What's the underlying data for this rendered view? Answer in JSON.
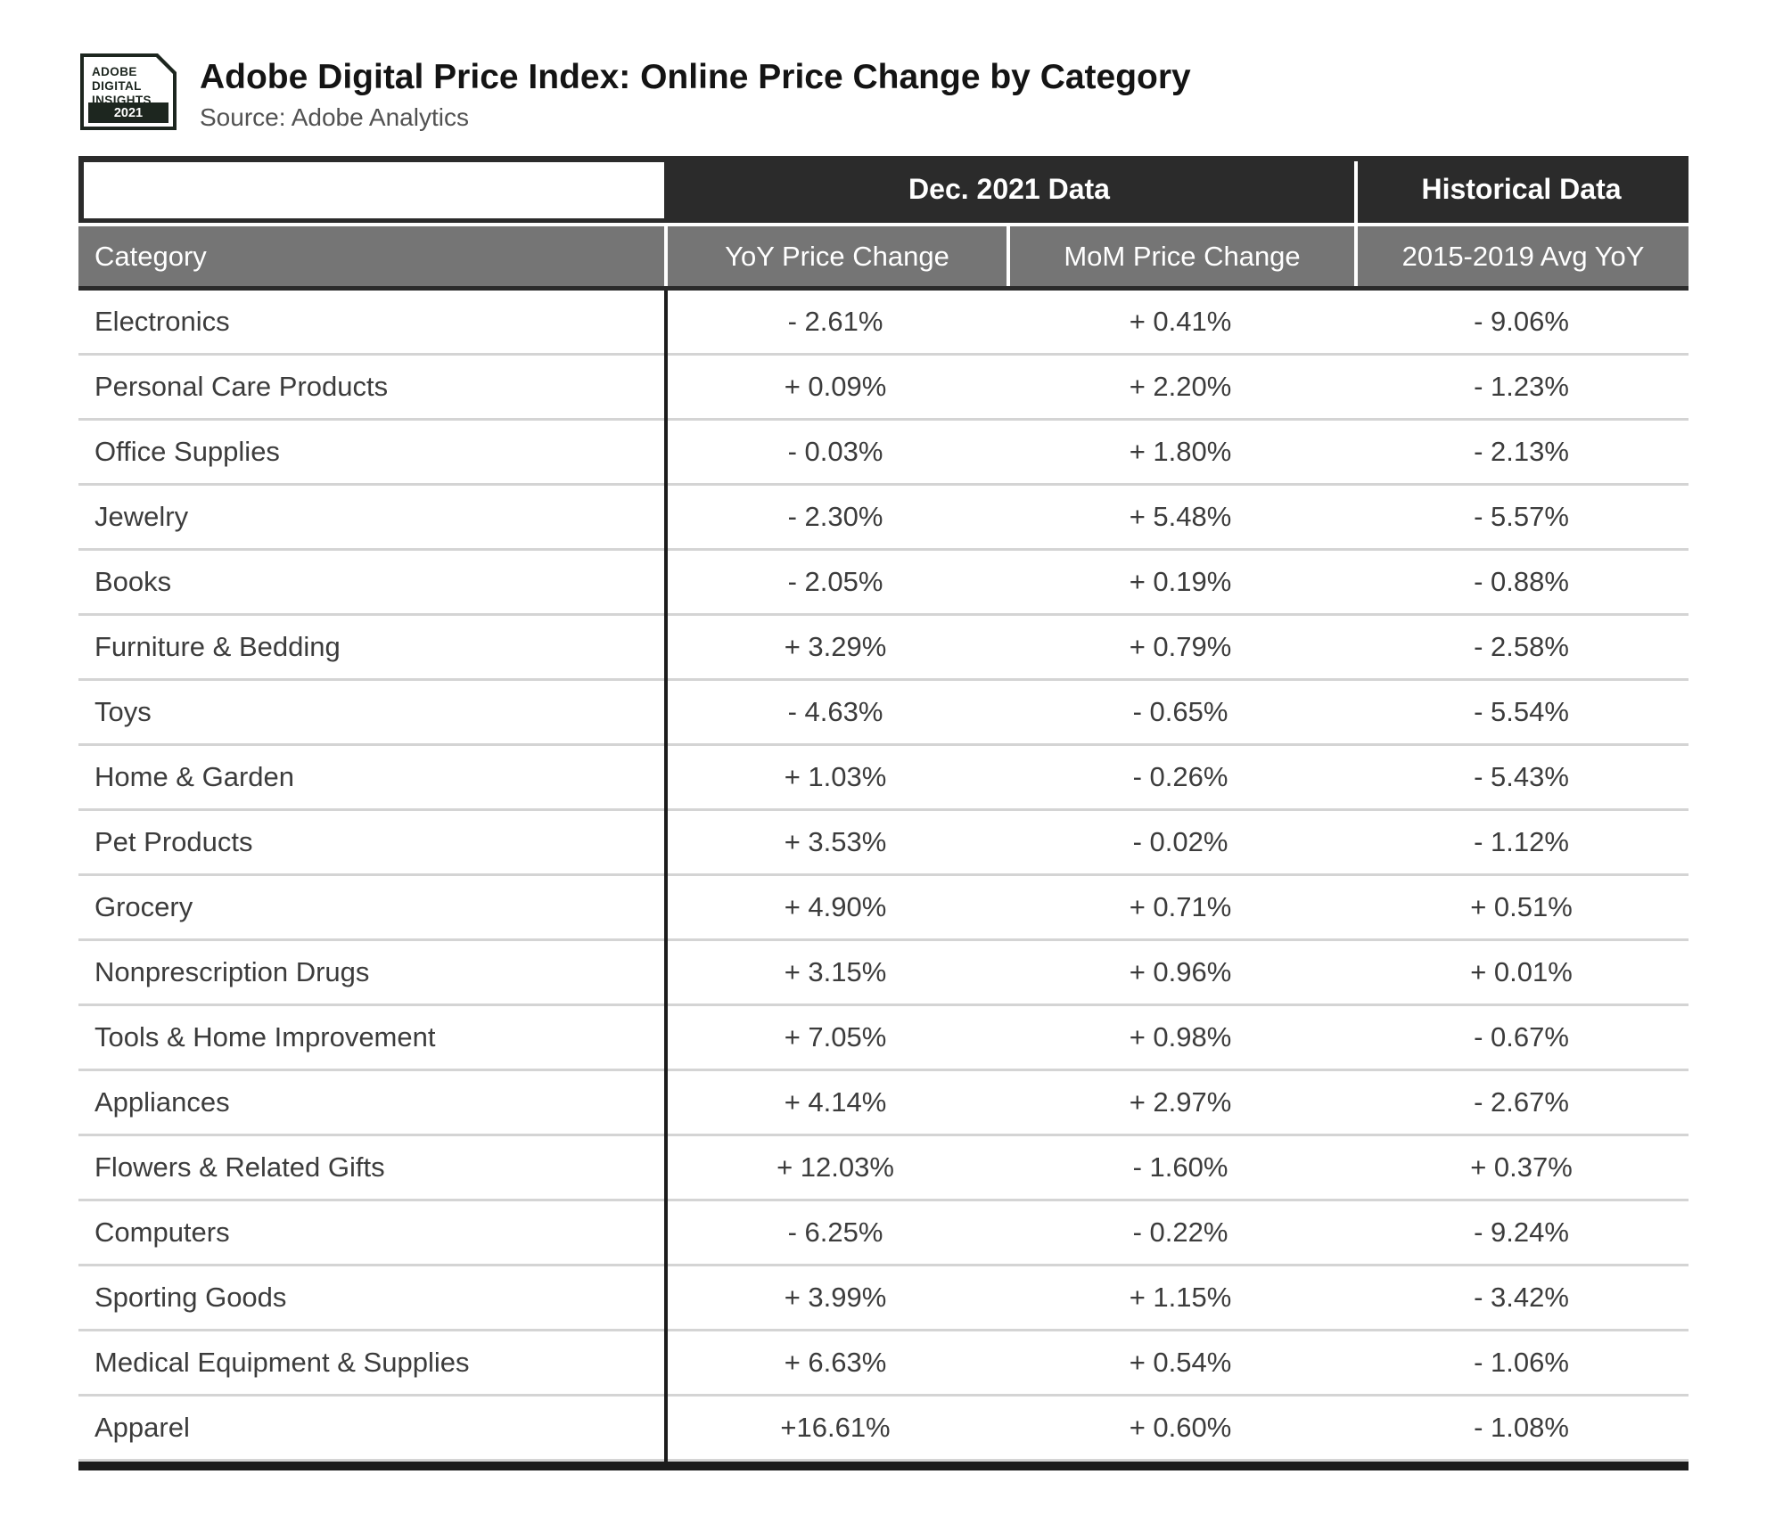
{
  "brand": {
    "logo": {
      "line1": "ADOBE",
      "line2": "DIGITAL",
      "line3": "INSIGHTS",
      "year": "2021"
    },
    "title": "Adobe Digital Price Index: Online Price Change by Category",
    "source": "Source: Adobe Analytics"
  },
  "colors": {
    "header_dark": "#2b2b2b",
    "header_gray": "#757575",
    "row_separator": "#d4d4d4",
    "rule_black": "#1c1c1c",
    "logo_dark_green": "#1d261f",
    "text_dark": "#3c3c3c"
  },
  "chart_data": {
    "type": "table",
    "title": "Adobe Digital Price Index: Online Price Change by Category",
    "source": "Source: Adobe Analytics",
    "group_headers": [
      {
        "label": "Dec. 2021 Data",
        "spans_columns": [
          "YoY Price Change",
          "MoM Price Change"
        ]
      },
      {
        "label": "Historical Data",
        "spans_columns": [
          "2015-2019 Avg YoY"
        ]
      }
    ],
    "columns": [
      "Category",
      "YoY Price Change",
      "MoM Price Change",
      "2015-2019 Avg YoY"
    ],
    "rows": [
      [
        "Electronics",
        "- 2.61%",
        "+ 0.41%",
        "- 9.06%"
      ],
      [
        "Personal Care Products",
        "+ 0.09%",
        "+ 2.20%",
        "- 1.23%"
      ],
      [
        "Office Supplies",
        "- 0.03%",
        "+ 1.80%",
        "- 2.13%"
      ],
      [
        "Jewelry",
        "- 2.30%",
        "+ 5.48%",
        "- 5.57%"
      ],
      [
        "Books",
        "- 2.05%",
        "+ 0.19%",
        "- 0.88%"
      ],
      [
        "Furniture & Bedding",
        "+ 3.29%",
        "+ 0.79%",
        "- 2.58%"
      ],
      [
        "Toys",
        "- 4.63%",
        "- 0.65%",
        "- 5.54%"
      ],
      [
        "Home & Garden",
        "+ 1.03%",
        "- 0.26%",
        "- 5.43%"
      ],
      [
        "Pet Products",
        "+ 3.53%",
        "- 0.02%",
        "- 1.12%"
      ],
      [
        "Grocery",
        "+ 4.90%",
        "+ 0.71%",
        "+ 0.51%"
      ],
      [
        "Nonprescription Drugs",
        "+ 3.15%",
        "+ 0.96%",
        "+ 0.01%"
      ],
      [
        "Tools & Home Improvement",
        "+ 7.05%",
        "+ 0.98%",
        "- 0.67%"
      ],
      [
        "Appliances",
        "+ 4.14%",
        "+ 2.97%",
        "- 2.67%"
      ],
      [
        "Flowers & Related Gifts",
        "+ 12.03%",
        "- 1.60%",
        "+ 0.37%"
      ],
      [
        "Computers",
        "- 6.25%",
        "- 0.22%",
        "- 9.24%"
      ],
      [
        "Sporting Goods",
        "+ 3.99%",
        "+ 1.15%",
        "- 3.42%"
      ],
      [
        "Medical Equipment & Supplies",
        "+ 6.63%",
        "+ 0.54%",
        "- 1.06%"
      ],
      [
        "Apparel",
        "+16.61%",
        "+ 0.60%",
        "- 1.08%"
      ]
    ]
  }
}
